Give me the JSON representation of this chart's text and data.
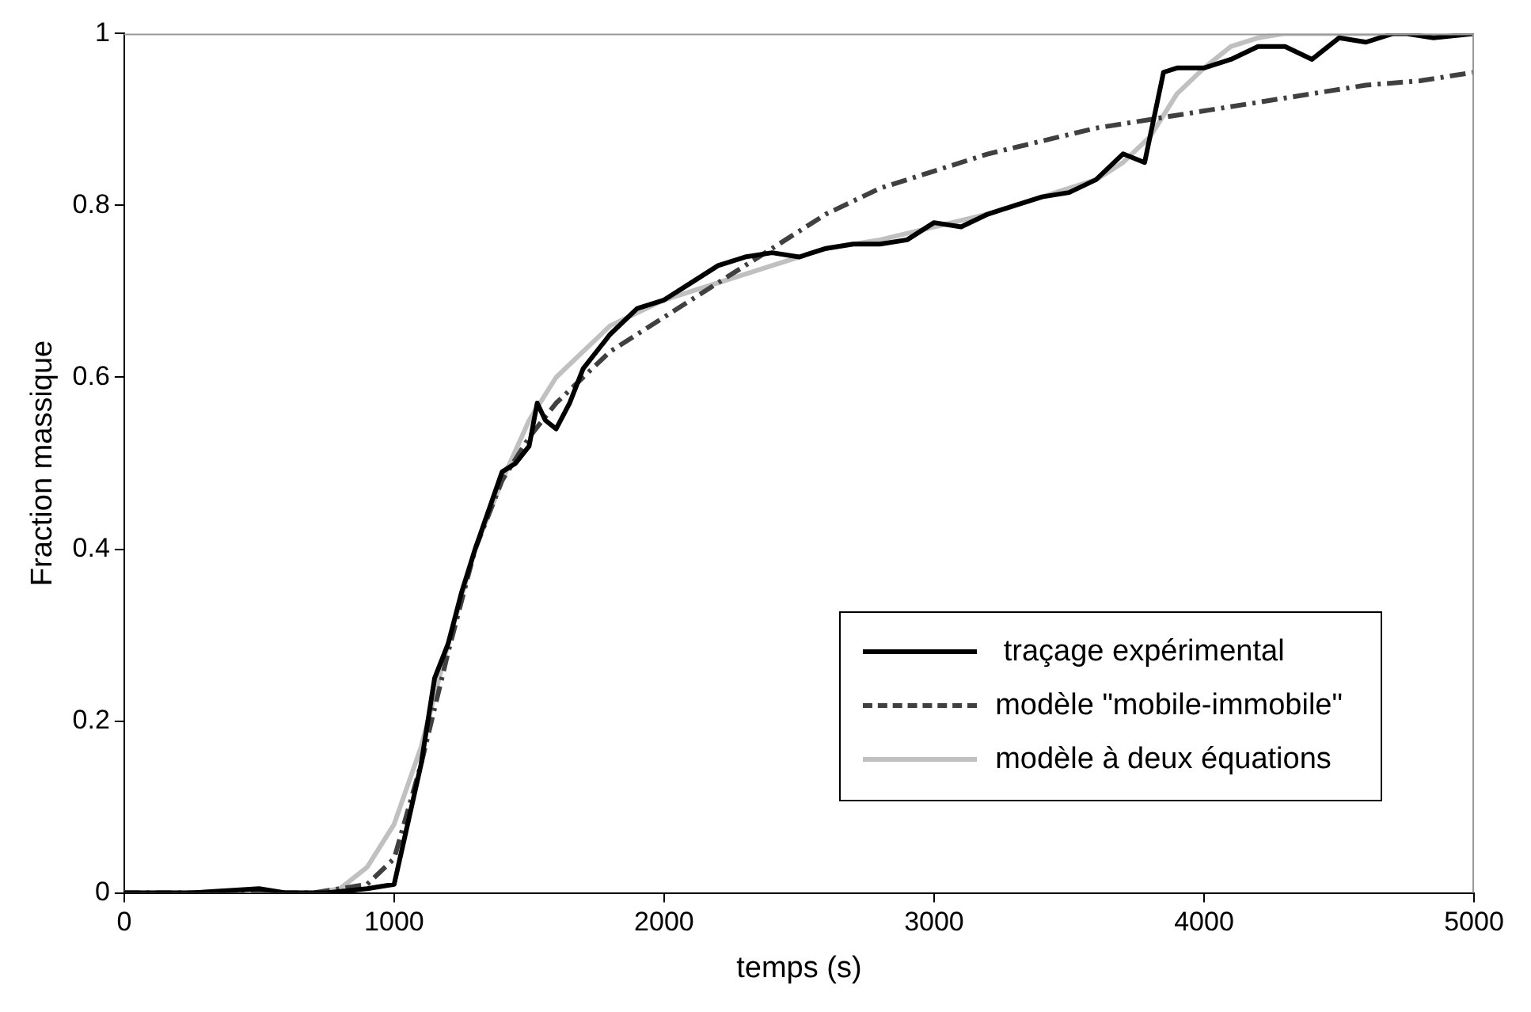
{
  "chart_data": {
    "type": "line",
    "xlabel": "temps (s)",
    "ylabel": "Fraction massique",
    "xlim": [
      0,
      5000
    ],
    "xticks": [
      0,
      1000,
      2000,
      3000,
      4000,
      5000
    ],
    "ylim": [
      0,
      1
    ],
    "yticks": [
      0,
      0.2,
      0.4,
      0.6,
      0.8,
      1
    ],
    "grid": false,
    "legend": "bottom right",
    "marker": "none",
    "series": [
      {
        "name": " traçage expérimental",
        "color": "#000000",
        "line_style": "solid",
        "x": [
          0,
          100,
          250,
          500,
          600,
          750,
          900,
          1000,
          1100,
          1150,
          1200,
          1250,
          1300,
          1400,
          1450,
          1500,
          1530,
          1560,
          1600,
          1650,
          1700,
          1800,
          1900,
          2000,
          2100,
          2200,
          2300,
          2400,
          2500,
          2600,
          2700,
          2800,
          2900,
          3000,
          3100,
          3200,
          3300,
          3400,
          3500,
          3600,
          3700,
          3780,
          3850,
          3900,
          4000,
          4100,
          4200,
          4300,
          4400,
          4500,
          4600,
          4700,
          4750,
          4850,
          5000
        ],
        "values": [
          0,
          0,
          0,
          0.005,
          0,
          0,
          0.005,
          0.01,
          0.15,
          0.25,
          0.29,
          0.35,
          0.4,
          0.49,
          0.5,
          0.52,
          0.57,
          0.55,
          0.54,
          0.57,
          0.61,
          0.65,
          0.68,
          0.69,
          0.71,
          0.73,
          0.74,
          0.745,
          0.74,
          0.75,
          0.755,
          0.755,
          0.76,
          0.78,
          0.775,
          0.79,
          0.8,
          0.81,
          0.815,
          0.83,
          0.86,
          0.85,
          0.955,
          0.96,
          0.96,
          0.97,
          0.985,
          0.985,
          0.97,
          0.995,
          0.99,
          1,
          1,
          0.995,
          1
        ]
      },
      {
        "name": "modèle \"mobile-immobile\"",
        "color": "#404040",
        "line_style": "dashed",
        "x": [
          0,
          700,
          900,
          1000,
          1100,
          1200,
          1300,
          1400,
          1500,
          1600,
          1700,
          1800,
          2000,
          2200,
          2400,
          2600,
          2800,
          3000,
          3200,
          3400,
          3600,
          3800,
          4000,
          4200,
          4400,
          4600,
          4800,
          5000
        ],
        "values": [
          0,
          0,
          0.01,
          0.04,
          0.15,
          0.28,
          0.4,
          0.48,
          0.53,
          0.57,
          0.6,
          0.63,
          0.67,
          0.71,
          0.75,
          0.79,
          0.82,
          0.84,
          0.86,
          0.875,
          0.89,
          0.9,
          0.91,
          0.92,
          0.93,
          0.94,
          0.945,
          0.955
        ]
      },
      {
        "name": "modèle à deux équations",
        "color": "#c0c0c0",
        "line_style": "solid",
        "x": [
          0,
          700,
          800,
          900,
          1000,
          1100,
          1200,
          1300,
          1400,
          1500,
          1600,
          1700,
          1800,
          2000,
          2200,
          2400,
          2600,
          2800,
          3000,
          3200,
          3400,
          3600,
          3700,
          3800,
          3900,
          4000,
          4100,
          4200,
          4300,
          5000
        ],
        "values": [
          0,
          0,
          0.005,
          0.03,
          0.08,
          0.17,
          0.29,
          0.4,
          0.48,
          0.55,
          0.6,
          0.63,
          0.66,
          0.69,
          0.71,
          0.73,
          0.75,
          0.76,
          0.775,
          0.79,
          0.81,
          0.83,
          0.85,
          0.88,
          0.93,
          0.96,
          0.985,
          0.995,
          1,
          1
        ]
      }
    ]
  }
}
